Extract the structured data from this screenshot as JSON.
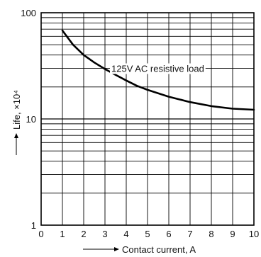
{
  "chart_data": {
    "type": "line",
    "title": "",
    "xlabel": "Contact current, A",
    "ylabel": "Life, ×10⁴",
    "xlim": [
      0,
      10
    ],
    "ylim": [
      1,
      100
    ],
    "yscale": "log",
    "grid": true,
    "xticks": [
      "0",
      "1",
      "2",
      "3",
      "4",
      "5",
      "6",
      "7",
      "8",
      "9",
      "10"
    ],
    "yticks": [
      "1",
      "10",
      "100"
    ],
    "series": [
      {
        "name": "125V AC resistive load",
        "x": [
          1,
          1.5,
          2,
          2.5,
          3,
          3.5,
          4,
          4.5,
          5,
          6,
          7,
          8,
          9,
          10
        ],
        "y": [
          68,
          50,
          40,
          34,
          29.5,
          26,
          23,
          20.5,
          18.8,
          16.2,
          14.4,
          13.2,
          12.5,
          12.2
        ]
      }
    ]
  }
}
